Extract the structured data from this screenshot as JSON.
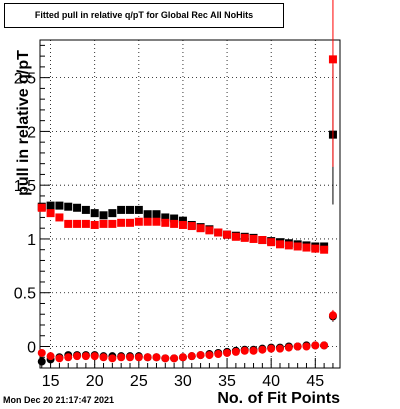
{
  "title": "Fitted pull in relative q/pT  for Global Rec All NoHits",
  "xlabel": "No. of Fit Points",
  "ylabel": "pull in relative q/pT",
  "timestamp": "Mon Dec 20 21:17:47 2021",
  "colors": {
    "black_series": "#000000",
    "red_series": "#ff0000",
    "grid": "#000000"
  },
  "chart_data": {
    "type": "scatter",
    "title": "Fitted pull in relative q/pT  for Global Rec All NoHits",
    "xlabel": "No. of Fit Points",
    "ylabel": "pull in relative q/pT",
    "xlim": [
      13.8,
      47.8
    ],
    "ylim": [
      -0.2,
      2.85
    ],
    "grid": true,
    "legend": "none",
    "x_ticks": [
      15,
      20,
      25,
      30,
      35,
      40,
      45
    ],
    "y_ticks": [
      0,
      0.5,
      1,
      1.5,
      2,
      2.5
    ],
    "y_tick_labels": [
      "0",
      "0.5",
      "1",
      "1.5",
      "2",
      "2.5"
    ],
    "series": [
      {
        "color": "#000000",
        "x": [
          14,
          15,
          16,
          17,
          18,
          19,
          20,
          21,
          22,
          23,
          24,
          25,
          26,
          27,
          28,
          29,
          30,
          31,
          32,
          33,
          34,
          35,
          36,
          37,
          38,
          39,
          40,
          41,
          42,
          43,
          44,
          45,
          46,
          47
        ],
        "y": [
          1.3,
          1.31,
          1.31,
          1.3,
          1.29,
          1.27,
          1.24,
          1.22,
          1.24,
          1.27,
          1.27,
          1.27,
          1.23,
          1.23,
          1.2,
          1.19,
          1.17,
          1.13,
          1.11,
          1.09,
          1.06,
          1.04,
          1.03,
          1.02,
          1.01,
          0.99,
          0.98,
          0.97,
          0.96,
          0.95,
          0.94,
          0.93,
          0.93,
          1.97
        ],
        "yerr": [
          0.01,
          0.01,
          0.01,
          0.01,
          0.01,
          0.01,
          0.01,
          0.01,
          0.01,
          0.01,
          0.01,
          0.01,
          0.01,
          0.01,
          0.01,
          0.01,
          0.01,
          0.01,
          0.01,
          0.01,
          0.01,
          0.01,
          0.01,
          0.01,
          0.01,
          0.01,
          0.01,
          0.01,
          0.01,
          0.01,
          0.01,
          0.01,
          0.01,
          0.65
        ]
      },
      {
        "color": "#000000",
        "x": [
          14,
          15,
          16,
          17,
          18,
          19,
          20,
          21,
          22,
          23,
          24,
          25,
          26,
          27,
          28,
          29,
          30,
          31,
          32,
          33,
          34,
          35,
          36,
          37,
          38,
          39,
          40,
          41,
          42,
          43,
          44,
          45,
          46,
          47
        ],
        "y": [
          -0.14,
          -0.12,
          -0.1,
          -0.08,
          -0.08,
          -0.08,
          -0.08,
          -0.09,
          -0.09,
          -0.09,
          -0.09,
          -0.09,
          -0.1,
          -0.1,
          -0.11,
          -0.11,
          -0.1,
          -0.09,
          -0.08,
          -0.07,
          -0.06,
          -0.05,
          -0.04,
          -0.03,
          -0.03,
          -0.02,
          -0.01,
          -0.01,
          0.0,
          0.0,
          0.01,
          0.01,
          0.01,
          0.28
        ],
        "yerr": [
          0.01,
          0.01,
          0.01,
          0.01,
          0.01,
          0.01,
          0.01,
          0.01,
          0.01,
          0.01,
          0.01,
          0.01,
          0.01,
          0.01,
          0.01,
          0.01,
          0.01,
          0.01,
          0.01,
          0.01,
          0.01,
          0.01,
          0.01,
          0.01,
          0.01,
          0.01,
          0.01,
          0.01,
          0.01,
          0.01,
          0.01,
          0.01,
          0.01,
          0.05
        ]
      },
      {
        "color": "#ff0000",
        "x": [
          14,
          15,
          16,
          17,
          18,
          19,
          20,
          21,
          22,
          23,
          24,
          25,
          26,
          27,
          28,
          29,
          30,
          31,
          32,
          33,
          34,
          35,
          36,
          37,
          38,
          39,
          40,
          41,
          42,
          43,
          44,
          45,
          46,
          47
        ],
        "y": [
          1.29,
          1.24,
          1.2,
          1.14,
          1.14,
          1.14,
          1.13,
          1.14,
          1.14,
          1.15,
          1.15,
          1.16,
          1.16,
          1.16,
          1.15,
          1.14,
          1.13,
          1.12,
          1.1,
          1.08,
          1.06,
          1.04,
          1.02,
          1.01,
          1.0,
          0.99,
          0.97,
          0.95,
          0.94,
          0.93,
          0.92,
          0.91,
          0.9,
          2.67
        ],
        "yerr": [
          0.01,
          0.01,
          0.01,
          0.01,
          0.01,
          0.01,
          0.01,
          0.01,
          0.01,
          0.01,
          0.01,
          0.01,
          0.01,
          0.01,
          0.01,
          0.01,
          0.01,
          0.01,
          0.01,
          0.01,
          0.01,
          0.01,
          0.01,
          0.01,
          0.01,
          0.01,
          0.01,
          0.01,
          0.01,
          0.01,
          0.01,
          0.01,
          0.01,
          1.0
        ]
      },
      {
        "color": "#ff0000",
        "x": [
          14,
          15,
          16,
          17,
          18,
          19,
          20,
          21,
          22,
          23,
          24,
          25,
          26,
          27,
          28,
          29,
          30,
          31,
          32,
          33,
          34,
          35,
          36,
          37,
          38,
          39,
          40,
          41,
          42,
          43,
          44,
          45,
          46,
          47
        ],
        "y": [
          -0.06,
          -0.09,
          -0.11,
          -0.1,
          -0.09,
          -0.09,
          -0.09,
          -0.1,
          -0.11,
          -0.1,
          -0.1,
          -0.1,
          -0.1,
          -0.1,
          -0.11,
          -0.11,
          -0.1,
          -0.09,
          -0.08,
          -0.08,
          -0.07,
          -0.06,
          -0.05,
          -0.04,
          -0.04,
          -0.03,
          -0.02,
          -0.02,
          -0.01,
          0.0,
          0.0,
          0.01,
          0.01,
          0.29
        ],
        "yerr": [
          0.01,
          0.01,
          0.01,
          0.01,
          0.01,
          0.01,
          0.01,
          0.01,
          0.01,
          0.01,
          0.01,
          0.01,
          0.01,
          0.01,
          0.01,
          0.01,
          0.01,
          0.01,
          0.01,
          0.01,
          0.01,
          0.01,
          0.01,
          0.01,
          0.01,
          0.01,
          0.01,
          0.01,
          0.01,
          0.01,
          0.01,
          0.01,
          0.01,
          0.05
        ]
      }
    ]
  }
}
